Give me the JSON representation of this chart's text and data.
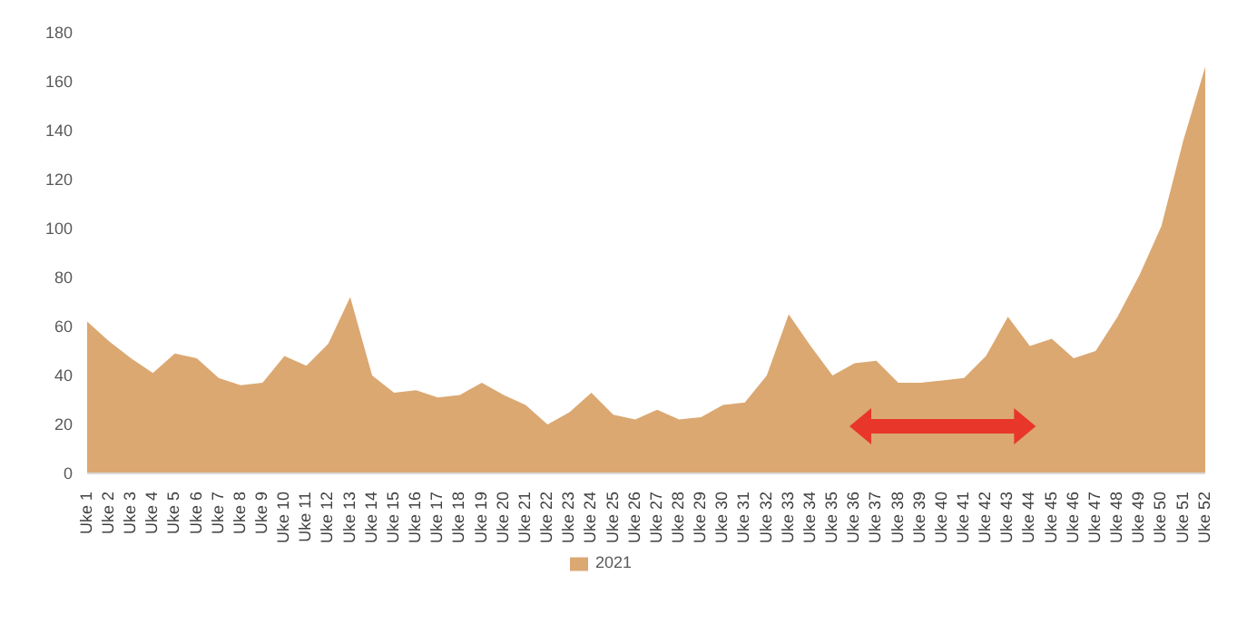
{
  "chart_data": {
    "type": "area",
    "categories": [
      "Uke 1",
      "Uke 2",
      "Uke 3",
      "Uke 4",
      "Uke 5",
      "Uke 6",
      "Uke 7",
      "Uke 8",
      "Uke 9",
      "Uke 10",
      "Uke 11",
      "Uke 12",
      "Uke 13",
      "Uke 14",
      "Uke 15",
      "Uke 16",
      "Uke 17",
      "Uke 18",
      "Uke 19",
      "Uke 20",
      "Uke 21",
      "Uke 22",
      "Uke 23",
      "Uke 24",
      "Uke 25",
      "Uke 26",
      "Uke 27",
      "Uke 28",
      "Uke 29",
      "Uke 30",
      "Uke 31",
      "Uke 32",
      "Uke 33",
      "Uke 34",
      "Uke 35",
      "Uke 36",
      "Uke 37",
      "Uke 38",
      "Uke 39",
      "Uke 40",
      "Uke 41",
      "Uke 42",
      "Uke 43",
      "Uke 44",
      "Uke 45",
      "Uke 46",
      "Uke 47",
      "Uke 48",
      "Uke 49",
      "Uke 50",
      "Uke 51",
      "Uke 52"
    ],
    "series": [
      {
        "name": "2021",
        "color": "#dba872",
        "values": [
          62,
          54,
          47,
          41,
          49,
          47,
          39,
          36,
          37,
          48,
          44,
          53,
          72,
          40,
          33,
          34,
          31,
          32,
          37,
          32,
          28,
          20,
          25,
          33,
          24,
          22,
          26,
          22,
          23,
          28,
          29,
          40,
          65,
          52,
          40,
          45,
          46,
          37,
          37,
          38,
          39,
          48,
          64,
          52,
          55,
          47,
          50,
          64,
          81,
          101,
          136,
          166
        ]
      }
    ],
    "ylim": [
      0,
      180
    ],
    "yticks": [
      0,
      20,
      40,
      60,
      80,
      100,
      120,
      140,
      160,
      180
    ],
    "legend": "bottom"
  }
}
